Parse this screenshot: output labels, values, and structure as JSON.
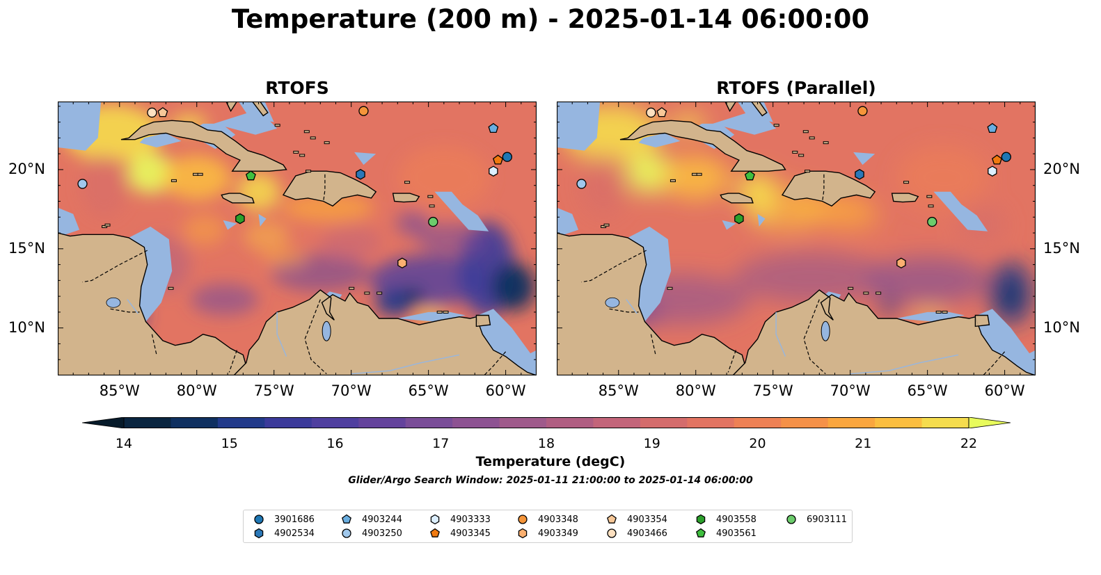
{
  "title": "Temperature (200 m) - 2025-01-14 06:00:00",
  "panels": [
    {
      "title": "RTOFS"
    },
    {
      "title": "RTOFS (Parallel)"
    }
  ],
  "map_axes": {
    "lon_range": [
      -89,
      -58
    ],
    "lat_range": [
      7,
      24.3
    ],
    "x_ticks": [
      "85°W",
      "80°W",
      "75°W",
      "70°W",
      "65°W",
      "60°W"
    ],
    "y_ticks": [
      "20°N",
      "15°N",
      "10°N"
    ]
  },
  "colorbar": {
    "label": "Temperature (degC)",
    "ticks": [
      "14",
      "15",
      "16",
      "17",
      "18",
      "19",
      "20",
      "21",
      "22"
    ],
    "range": [
      14,
      22
    ],
    "extend": "both",
    "colors": [
      "#0a2540",
      "#0f3060",
      "#223a8a",
      "#3b3a9a",
      "#4f3f9f",
      "#64439c",
      "#7a4d98",
      "#8d5292",
      "#9f5a8b",
      "#b05e82",
      "#c3657a",
      "#d46c6c",
      "#e27462",
      "#ee8155",
      "#f59148",
      "#faa63e",
      "#fbbe40",
      "#f5dc4e"
    ],
    "under_color": "#061a2a",
    "over_color": "#e8fb5c"
  },
  "colors": {
    "land": "#d2b48c",
    "shallow": "#96b6e0",
    "deep": "#06243a"
  },
  "search_window": "Glider/Argo Search Window: 2025-01-11 21:00:00 to 2025-01-14 06:00:00",
  "floats": [
    {
      "id": "3901686",
      "marker": "circle",
      "color": "#1f77b4",
      "lon": -59.9,
      "lat": 20.8
    },
    {
      "id": "4902534",
      "marker": "hexagon",
      "color": "#2b78b8",
      "lon": -69.4,
      "lat": 19.7
    },
    {
      "id": "4903244",
      "marker": "pentagon",
      "color": "#6aaee0",
      "lon": -60.8,
      "lat": 22.6
    },
    {
      "id": "4903250",
      "marker": "circle",
      "color": "#a0c8ec",
      "lon": -87.4,
      "lat": 19.1
    },
    {
      "id": "4903333",
      "marker": "hexagon",
      "color": "#dcefff",
      "lon": -60.8,
      "lat": 19.9
    },
    {
      "id": "4903345",
      "marker": "pentagon",
      "color": "#f07a10",
      "lon": -60.5,
      "lat": 20.6
    },
    {
      "id": "4903348",
      "marker": "circle",
      "color": "#f5953a",
      "lon": -69.2,
      "lat": 23.7
    },
    {
      "id": "4903349",
      "marker": "hexagon",
      "color": "#fbb070",
      "lon": -66.7,
      "lat": 14.1
    },
    {
      "id": "4903354",
      "marker": "pentagon",
      "color": "#f7c898",
      "lon": -82.2,
      "lat": 23.6
    },
    {
      "id": "4903466",
      "marker": "circle",
      "color": "#fde0c0",
      "lon": -82.9,
      "lat": 23.6
    },
    {
      "id": "4903558",
      "marker": "hexagon",
      "color": "#2ca02c",
      "lon": -77.2,
      "lat": 16.9
    },
    {
      "id": "4903561",
      "marker": "pentagon",
      "color": "#3fbf3f",
      "lon": -76.5,
      "lat": 19.6
    },
    {
      "id": "6903111",
      "marker": "circle",
      "color": "#6ccc6c",
      "lon": -64.7,
      "lat": 16.7
    }
  ]
}
